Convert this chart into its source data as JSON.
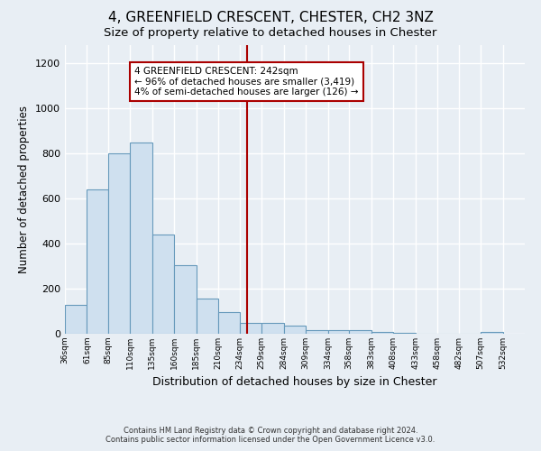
{
  "title": "4, GREENFIELD CRESCENT, CHESTER, CH2 3NZ",
  "subtitle": "Size of property relative to detached houses in Chester",
  "xlabel": "Distribution of detached houses by size in Chester",
  "ylabel": "Number of detached properties",
  "footer_line1": "Contains HM Land Registry data © Crown copyright and database right 2024.",
  "footer_line2": "Contains public sector information licensed under the Open Government Licence v3.0.",
  "annotation_title": "4 GREENFIELD CRESCENT: 242sqm",
  "annotation_line1": "← 96% of detached houses are smaller (3,419)",
  "annotation_line2": "4% of semi-detached houses are larger (126) →",
  "property_size": 242,
  "bin_labels": [
    "36sqm",
    "61sqm",
    "85sqm",
    "110sqm",
    "135sqm",
    "160sqm",
    "185sqm",
    "210sqm",
    "234sqm",
    "259sqm",
    "284sqm",
    "309sqm",
    "334sqm",
    "358sqm",
    "383sqm",
    "408sqm",
    "433sqm",
    "458sqm",
    "482sqm",
    "507sqm",
    "532sqm"
  ],
  "bin_edges": [
    36,
    61,
    85,
    110,
    135,
    160,
    185,
    210,
    234,
    259,
    284,
    309,
    334,
    358,
    383,
    408,
    433,
    458,
    482,
    507,
    532
  ],
  "bar_heights": [
    130,
    640,
    800,
    850,
    440,
    305,
    155,
    95,
    50,
    50,
    35,
    15,
    15,
    15,
    10,
    5,
    0,
    0,
    0,
    10
  ],
  "bar_color": "#cfe0ef",
  "bar_edge_color": "#6699bb",
  "vline_color": "#aa0000",
  "vline_x": 242,
  "ylim": [
    0,
    1280
  ],
  "yticks": [
    0,
    200,
    400,
    600,
    800,
    1000,
    1200
  ],
  "bg_color": "#e8eef4",
  "plot_bg_color": "#e8eef4",
  "grid_color": "#ffffff",
  "title_fontsize": 11,
  "subtitle_fontsize": 9.5,
  "xlabel_fontsize": 9,
  "ylabel_fontsize": 8.5
}
